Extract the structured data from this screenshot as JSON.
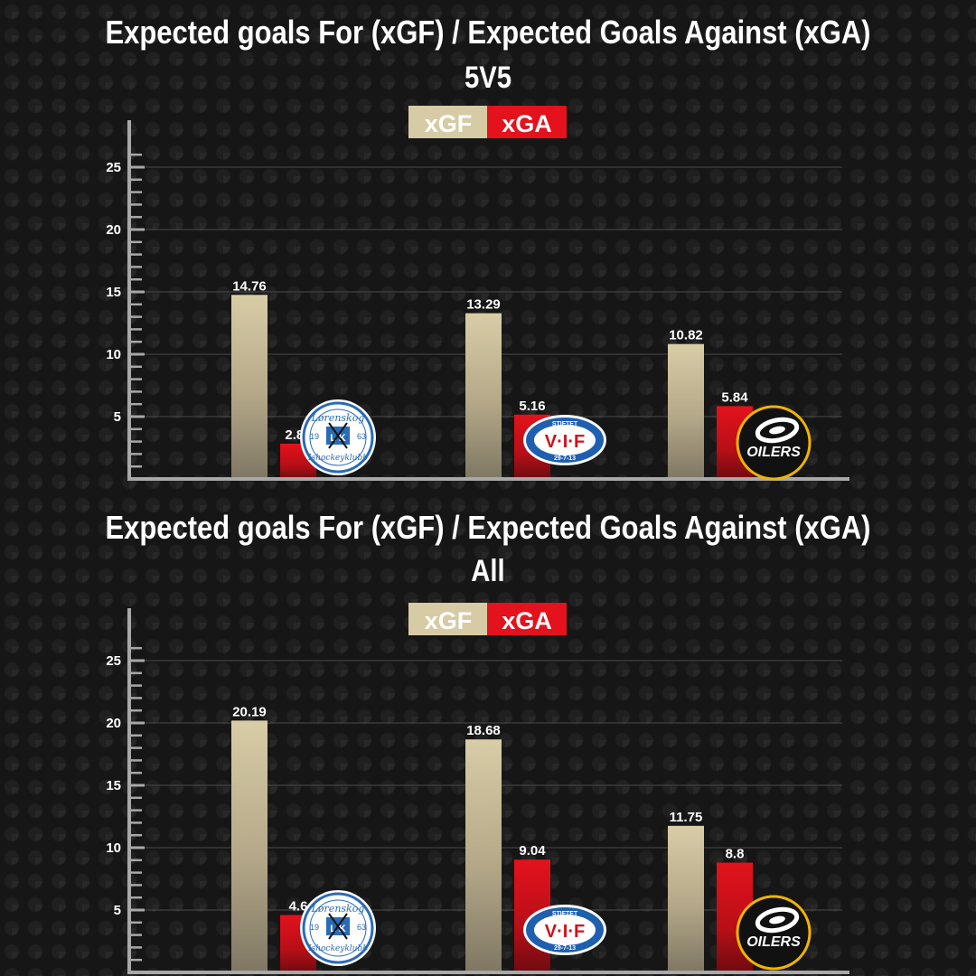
{
  "colors": {
    "xGF": "#d6cba4",
    "xGA": "#e3121c",
    "axis": "#a8a8a8",
    "grid": "#4a4a4a",
    "text": "#ffffff"
  },
  "team_logos": [
    "lorenskog-logo",
    "valerenga-logo",
    "oilers-logo"
  ],
  "charts": [
    {
      "title": "Expected goals For (xGF) / Expected Goals Against (xGA)",
      "subtitle": "5V5",
      "legend": {
        "xgf": "xGF",
        "xga": "xGA"
      },
      "yticks": [
        "5",
        "10",
        "15",
        "20",
        "25"
      ],
      "logo_text": {
        "lorenskog_top": "Lørenskog",
        "lorenskog_bottom": "Ishockeyklubb",
        "lorenskog_mono": "L K",
        "lorenskog_left_year": "19",
        "lorenskog_right_year": "63",
        "vif_top": "STIFTET",
        "vif_mid": "V·I·F",
        "vif_bottom": "29-7-13",
        "oilers": "OILERS"
      },
      "value_labels": {
        "xgf": [
          "14.76",
          "13.29",
          "10.82"
        ],
        "xga": [
          "2.83",
          "5.16",
          "5.84"
        ]
      }
    },
    {
      "title": "Expected goals For (xGF) / Expected Goals Against (xGA)",
      "subtitle": "All",
      "legend": {
        "xgf": "xGF",
        "xga": "xGA"
      },
      "yticks": [
        "5",
        "10",
        "15",
        "20",
        "25"
      ],
      "logo_text": {
        "lorenskog_top": "Lørenskog",
        "lorenskog_bottom": "Ishockeyklubb",
        "lorenskog_mono": "L K",
        "lorenskog_left_year": "19",
        "lorenskog_right_year": "63",
        "vif_top": "STIFTET",
        "vif_mid": "V·I·F",
        "vif_bottom": "29-7-13",
        "oilers": "OILERS"
      },
      "value_labels": {
        "xgf": [
          "20.19",
          "18.68",
          "11.75"
        ],
        "xga": [
          "4.6",
          "9.04",
          "8.8"
        ]
      }
    }
  ],
  "chart_data": [
    {
      "type": "bar",
      "title": "Expected goals For (xGF) / Expected Goals Against (xGA)",
      "subtitle": "5V5",
      "xlabel": "",
      "ylabel": "",
      "ylim": [
        0,
        26
      ],
      "yticks": [
        5,
        10,
        15,
        20,
        25
      ],
      "grid": true,
      "legend_position": "top-center",
      "categories": [
        "Lørenskog",
        "Vålerenga",
        "Oilers"
      ],
      "series": [
        {
          "name": "xGF",
          "values": [
            14.76,
            13.29,
            10.82
          ]
        },
        {
          "name": "xGA",
          "values": [
            2.83,
            5.16,
            5.84
          ]
        }
      ]
    },
    {
      "type": "bar",
      "title": "Expected goals For (xGF) / Expected Goals Against (xGA)",
      "subtitle": "All",
      "xlabel": "",
      "ylabel": "",
      "ylim": [
        0,
        26
      ],
      "yticks": [
        5,
        10,
        15,
        20,
        25
      ],
      "grid": true,
      "legend_position": "top-center",
      "categories": [
        "Lørenskog",
        "Vålerenga",
        "Oilers"
      ],
      "series": [
        {
          "name": "xGF",
          "values": [
            20.19,
            18.68,
            11.75
          ]
        },
        {
          "name": "xGA",
          "values": [
            4.6,
            9.04,
            8.8
          ]
        }
      ]
    }
  ]
}
